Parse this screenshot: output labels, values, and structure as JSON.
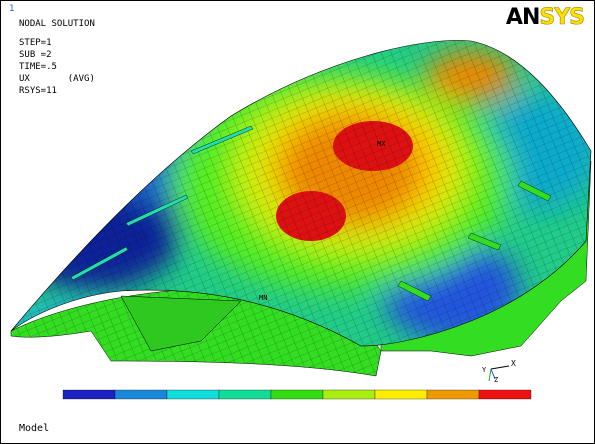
{
  "window_number": "1",
  "header": {
    "title": "NODAL SOLUTION",
    "lines": [
      "STEP=1",
      "SUB =2",
      "TIME=.5",
      "UX       (AVG)",
      "RSYS=11"
    ]
  },
  "logo": {
    "part1": "AN",
    "part2": "SYS"
  },
  "markers": {
    "max": "MX",
    "min": "MN"
  },
  "triad": {
    "x": "X",
    "y": "Y",
    "z": "Z"
  },
  "footer": "Model"
}
